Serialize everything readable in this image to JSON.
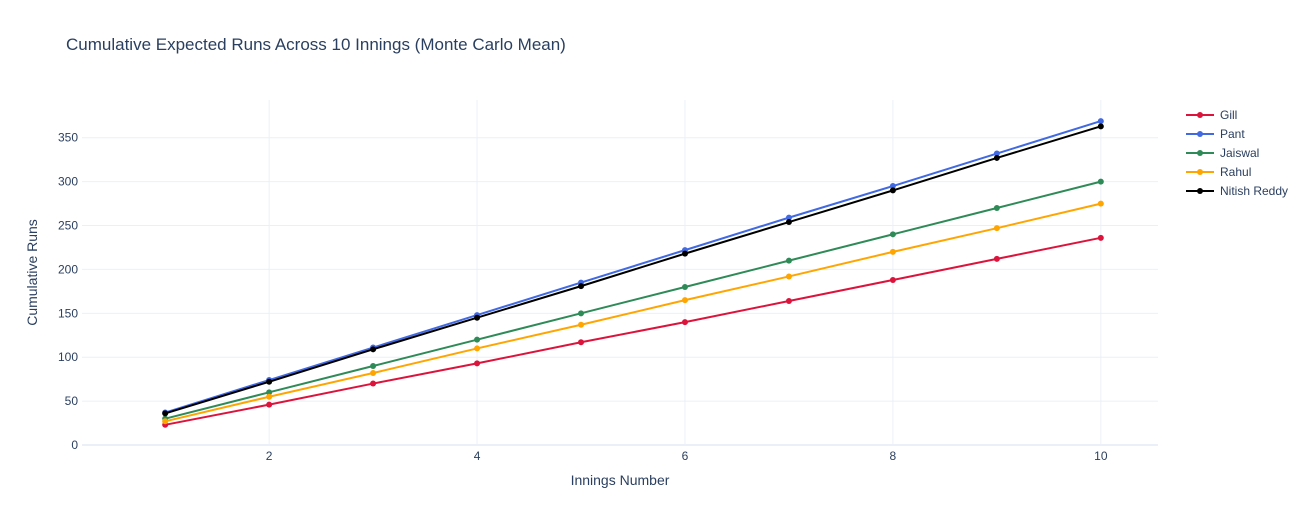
{
  "chart_data": {
    "type": "line",
    "title": "Cumulative Expected Runs Across 10 Innings (Monte Carlo Mean)",
    "xlabel": "Innings Number",
    "ylabel": "Cumulative Runs",
    "xlim": [
      0.2,
      10.55
    ],
    "ylim": [
      0,
      393
    ],
    "x_ticks": [
      2,
      4,
      6,
      8,
      10
    ],
    "y_ticks": [
      0,
      50,
      100,
      150,
      200,
      250,
      300,
      350
    ],
    "grid": true,
    "legend_position": "top-right",
    "x": [
      1,
      2,
      3,
      4,
      5,
      6,
      7,
      8,
      9,
      10
    ],
    "series": [
      {
        "name": "Gill",
        "color": "#dc143c",
        "values": [
          23,
          46,
          70,
          93,
          117,
          140,
          164,
          188,
          212,
          236
        ]
      },
      {
        "name": "Pant",
        "color": "#4169e1",
        "values": [
          37,
          74,
          111,
          148,
          185,
          222,
          259,
          295,
          332,
          369
        ]
      },
      {
        "name": "Jaiswal",
        "color": "#2e8b57",
        "values": [
          30,
          60,
          90,
          120,
          150,
          180,
          210,
          240,
          270,
          300
        ]
      },
      {
        "name": "Rahul",
        "color": "#ffa500",
        "values": [
          27,
          55,
          82,
          110,
          137,
          165,
          192,
          220,
          247,
          275
        ]
      },
      {
        "name": "Nitish Reddy",
        "color": "#000000",
        "values": [
          36,
          72,
          109,
          145,
          181,
          218,
          254,
          290,
          327,
          363
        ]
      }
    ]
  }
}
